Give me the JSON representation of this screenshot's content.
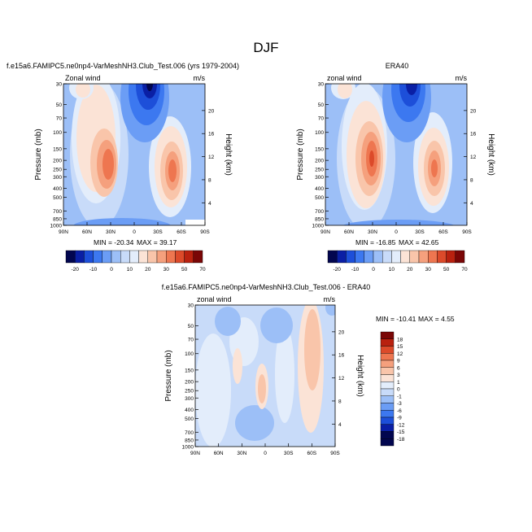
{
  "title": "DJF",
  "colors": {
    "negative_scale": [
      "#02064f",
      "#0a1fa5",
      "#1d4fd9",
      "#3c78f0",
      "#6b9df5",
      "#9cbff7",
      "#c8dbf9"
    ],
    "neutral": "#e3edfb",
    "positive_scale": [
      "#fbe3d6",
      "#f9c5aa",
      "#f5a07d",
      "#ee7650",
      "#dc4a2a",
      "#b9210f",
      "#7a0606"
    ]
  },
  "chart_data": [
    {
      "type": "contour",
      "panel": "model",
      "title": "f.e15a6.FAMIPC5.ne0np4-VarMeshNH3.Club_Test.006 (yrs 1979-2004)",
      "field_label": "Zonal wind",
      "units": "m/s",
      "ylabel": "Pressure (mb)",
      "ylabel_right": "Height (km)",
      "x_ticks": [
        "90N",
        "60N",
        "30N",
        "0",
        "30S",
        "60S",
        "90S"
      ],
      "x_range": [
        90,
        -90
      ],
      "y_ticks": [
        "30",
        "50",
        "70",
        "100",
        "150",
        "200",
        "250",
        "300",
        "400",
        "500",
        "700",
        "850",
        "1000"
      ],
      "y_tick_values": [
        30,
        50,
        70,
        100,
        150,
        200,
        250,
        300,
        400,
        500,
        700,
        850,
        1000
      ],
      "y_range": [
        30,
        1000
      ],
      "y_scale": "log",
      "height_ticks": [
        "4",
        "8",
        "12",
        "16",
        "20"
      ],
      "height_tick_values": [
        4,
        8,
        12,
        16,
        20
      ],
      "min_label": "MIN = -20.34",
      "max_label": "MAX = 39.17",
      "min": -20.34,
      "max": 39.17,
      "features": [
        {
          "kind": "jet",
          "lat": 32,
          "p": 200,
          "peak": 39
        },
        {
          "kind": "jet",
          "lat": -50,
          "p": 220,
          "peak": 30
        },
        {
          "kind": "easterly",
          "lat": -5,
          "p": 30,
          "peak": -20
        }
      ]
    },
    {
      "type": "contour",
      "panel": "obs",
      "title": "ERA40",
      "field_label": "zonal wind",
      "units": "m/s",
      "ylabel": "Pressure (mb)",
      "ylabel_right": "Height (km)",
      "x_ticks": [
        "90N",
        "60N",
        "30N",
        "0",
        "30S",
        "60S",
        "90S"
      ],
      "x_range": [
        90,
        -90
      ],
      "y_ticks": [
        "30",
        "50",
        "70",
        "100",
        "150",
        "200",
        "250",
        "300",
        "400",
        "500",
        "700",
        "850",
        "1000"
      ],
      "y_tick_values": [
        30,
        50,
        70,
        100,
        150,
        200,
        250,
        300,
        400,
        500,
        700,
        850,
        1000
      ],
      "y_range": [
        30,
        1000
      ],
      "y_scale": "log",
      "height_ticks": [
        "4",
        "8",
        "12",
        "16",
        "20"
      ],
      "height_tick_values": [
        4,
        8,
        12,
        16,
        20
      ],
      "min_label": "MIN = -16.85",
      "max_label": "MAX = 42.65",
      "min": -16.85,
      "max": 42.65,
      "features": [
        {
          "kind": "jet",
          "lat": 30,
          "p": 200,
          "peak": 42
        },
        {
          "kind": "jet",
          "lat": -50,
          "p": 240,
          "peak": 33
        },
        {
          "kind": "easterly",
          "lat": -5,
          "p": 30,
          "peak": -17
        }
      ]
    },
    {
      "type": "contour",
      "panel": "difference",
      "title": "f.e15a6.FAMIPC5.ne0np4-VarMeshNH3.Club_Test.006 - ERA40",
      "field_label": "zonal wind",
      "units": "m/s",
      "ylabel": "Pressure (mb)",
      "ylabel_right": "Height (km)",
      "x_ticks": [
        "90N",
        "60N",
        "30N",
        "0",
        "30S",
        "60S",
        "90S"
      ],
      "x_range": [
        90,
        -90
      ],
      "y_ticks": [
        "30",
        "50",
        "70",
        "100",
        "150",
        "200",
        "250",
        "300",
        "400",
        "500",
        "700",
        "850",
        "1000"
      ],
      "y_tick_values": [
        30,
        50,
        70,
        100,
        150,
        200,
        250,
        300,
        400,
        500,
        700,
        850,
        1000
      ],
      "y_range": [
        30,
        1000
      ],
      "y_scale": "log",
      "height_ticks": [
        "4",
        "8",
        "12",
        "16",
        "20"
      ],
      "height_tick_values": [
        4,
        8,
        12,
        16,
        20
      ],
      "min_label": "MIN = -10.41",
      "max_label": "MAX =   4.55",
      "min": -10.41,
      "max": 4.55
    }
  ],
  "colorbar_main": {
    "labels": [
      "-20",
      "-10",
      "0",
      "10",
      "20",
      "30",
      "50",
      "70"
    ],
    "levels": [
      -25,
      -20,
      -15,
      -10,
      -5,
      0,
      5,
      10,
      15,
      20,
      25,
      30,
      40,
      50,
      60,
      70
    ]
  },
  "colorbar_diff": {
    "labels": [
      "18",
      "15",
      "12",
      "9",
      "6",
      "3",
      "1",
      "0",
      "-1",
      "-3",
      "-6",
      "-9",
      "-12",
      "-15",
      "-18"
    ]
  }
}
